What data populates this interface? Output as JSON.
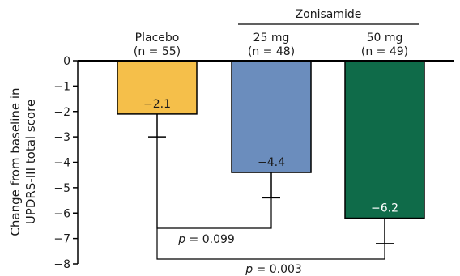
{
  "chart_data": {
    "type": "bar",
    "ylabel_lines": [
      "Change from baseline in",
      "UPDRS-III total score"
    ],
    "ylim": [
      -8,
      0
    ],
    "yticks": [
      0,
      -1,
      -2,
      -3,
      -4,
      -5,
      -6,
      -7,
      -8
    ],
    "ytick_labels": [
      "0",
      "−1",
      "−2",
      "−3",
      "−4",
      "−5",
      "−6",
      "−7",
      "−8"
    ],
    "group_label": "Zonisamide",
    "categories": [
      {
        "name": "Placebo",
        "n_label": "(n = 55)",
        "value": -2.1,
        "error": 0.9,
        "value_label": "−2.1",
        "color": "#f5bf4a"
      },
      {
        "name": "25 mg",
        "n_label": "(n = 48)",
        "value": -4.4,
        "error": 1.0,
        "value_label": "−4.4",
        "color": "#6b8dbd"
      },
      {
        "name": "50 mg",
        "n_label": "(n = 49)",
        "value": -6.2,
        "error": 1.0,
        "value_label": "−6.2",
        "color": "#0f6b49"
      }
    ],
    "comparisons": [
      {
        "from": 0,
        "to": 1,
        "p_prefix": "p",
        "p_text": " = 0.099",
        "level": -7.0
      },
      {
        "from": 0,
        "to": 2,
        "p_prefix": "p",
        "p_text": " = 0.003",
        "level": -8.0
      }
    ]
  }
}
